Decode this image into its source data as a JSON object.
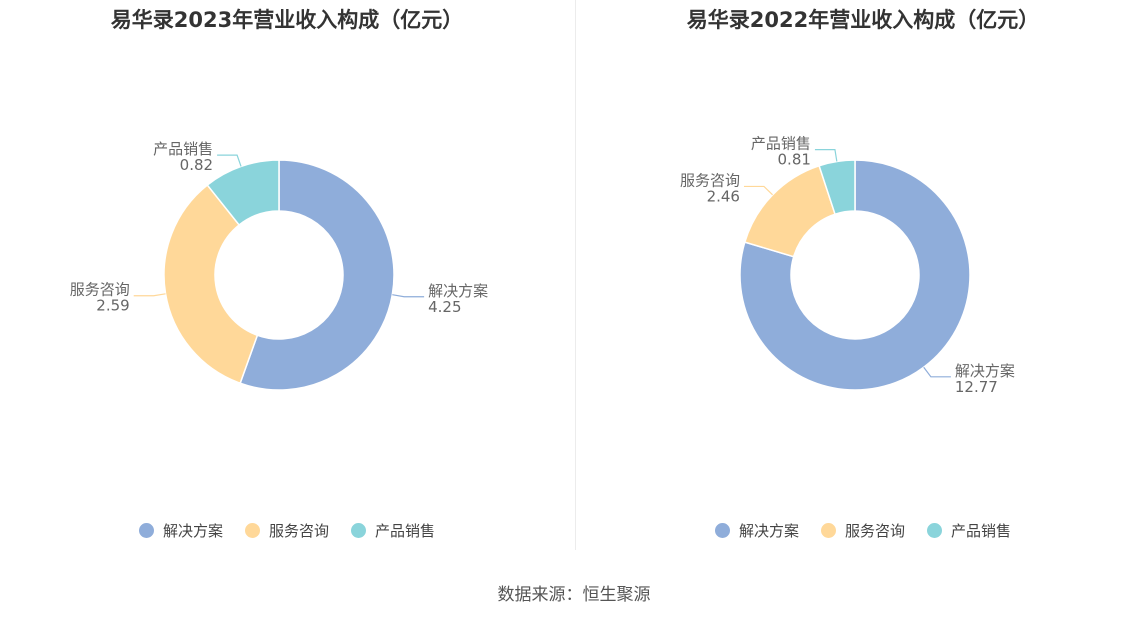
{
  "source": "数据来源：恒生聚源",
  "chart_data": [
    {
      "type": "pie",
      "title": "易华录2023年营业收入构成（亿元）",
      "categories": [
        "解决方案",
        "服务咨询",
        "产品销售"
      ],
      "values": [
        4.25,
        2.59,
        0.82
      ],
      "value_labels": [
        "4.25",
        "2.59",
        "0.82"
      ],
      "colors": [
        "#8fadda",
        "#ffd899",
        "#8ad4db"
      ],
      "legend": "bottom-center",
      "donut": true
    },
    {
      "type": "pie",
      "title": "易华录2022年营业收入构成（亿元）",
      "categories": [
        "解决方案",
        "服务咨询",
        "产品销售"
      ],
      "values": [
        12.77,
        2.46,
        0.81
      ],
      "value_labels": [
        "12.77",
        "2.46",
        "0.81"
      ],
      "colors": [
        "#8fadda",
        "#ffd899",
        "#8ad4db"
      ],
      "legend": "bottom-center",
      "donut": true
    }
  ]
}
